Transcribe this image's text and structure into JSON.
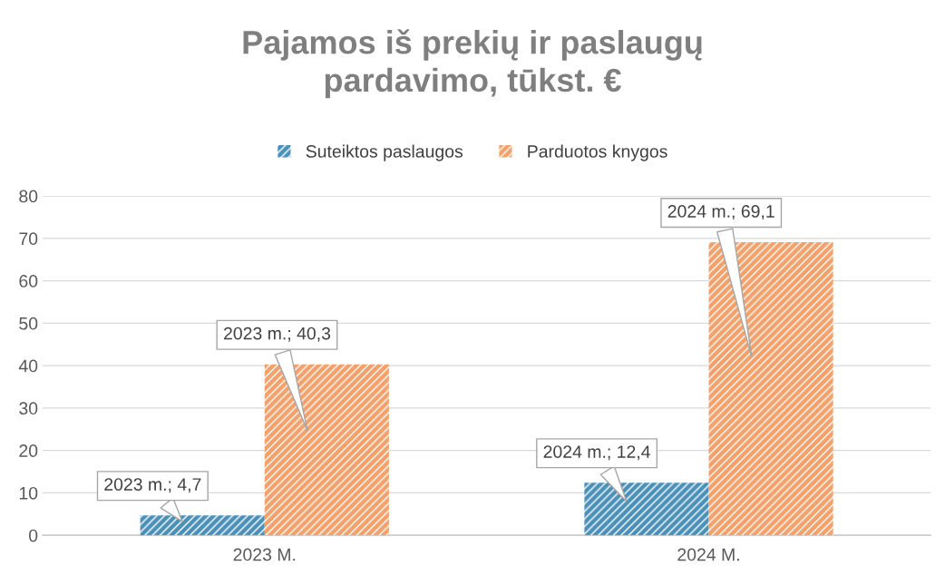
{
  "chart_data": {
    "type": "bar",
    "title": "Pajamos iš prekių ir paslaugų\npardavimo, tūkst. €",
    "categories": [
      "2023 M.",
      "2024 M."
    ],
    "series": [
      {
        "name": "Suteiktos paslaugos",
        "color": "#4a90b8",
        "values": [
          4.7,
          12.4
        ],
        "value_labels": [
          "2023 m.; 4,7",
          "2024 m.; 12,4"
        ]
      },
      {
        "name": "Parduotos knygos",
        "color": "#f4a06a",
        "values": [
          40.3,
          69.1
        ],
        "value_labels": [
          "2023 m.; 40,3",
          "2024 m.; 69,1"
        ]
      }
    ],
    "ylim": [
      0,
      80
    ],
    "yticks": [
      0,
      10,
      20,
      30,
      40,
      50,
      60,
      70,
      80
    ],
    "grid": "y",
    "legend": "top"
  }
}
